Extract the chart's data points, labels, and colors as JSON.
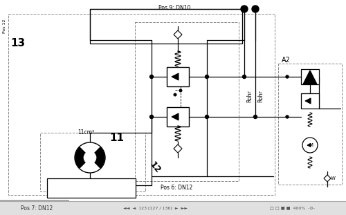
{
  "bg_color": "#f0f0f0",
  "main_bg": "#ffffff",
  "line_color": "#000000",
  "dashed_color": "#777777",
  "text_labels": {
    "pos9": "Pos 9: DN10",
    "pos6": "Pos 6: DN12",
    "pos7": "Pos 7: DN12",
    "label13": "13",
    "label11": "11",
    "label12": "12",
    "label11cm": "11cm³",
    "rohr1": "Rohr",
    "rohr2": "Rohr",
    "A2": "A2",
    "pos12": "Pos 12"
  },
  "figsize": [
    5.0,
    3.11
  ],
  "dpi": 100
}
